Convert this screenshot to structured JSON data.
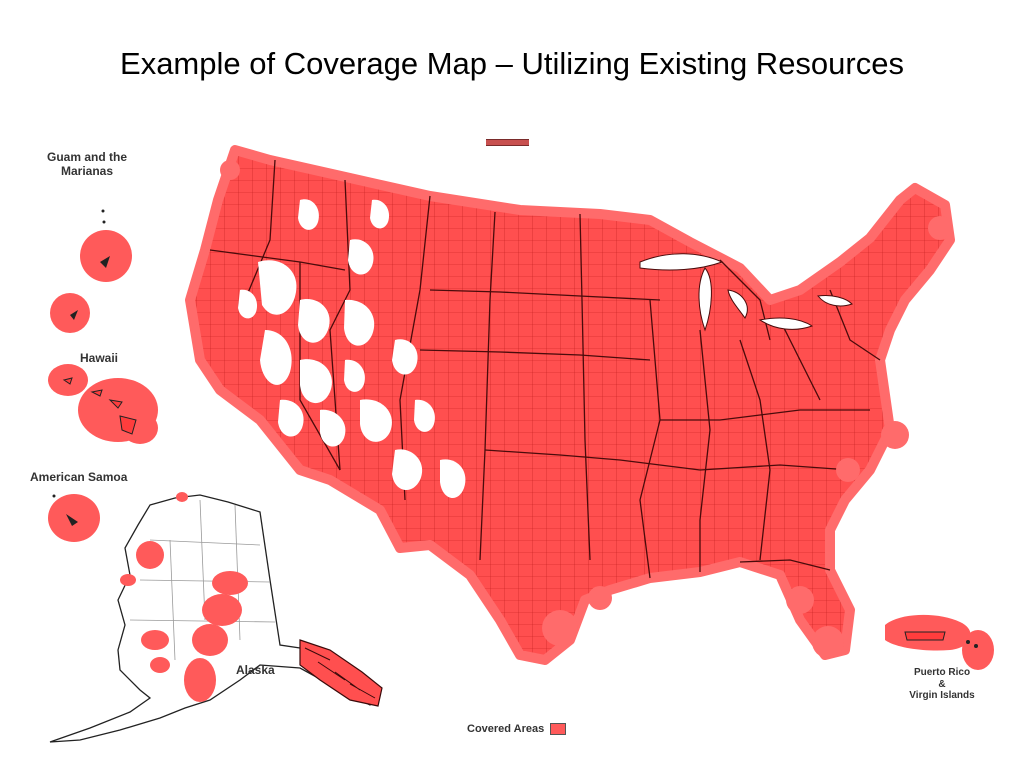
{
  "title": "Example of Coverage Map – Utilizing Existing Resources",
  "colors": {
    "coverage": "#ff4f4f",
    "coverage_soft": "#ff6b6b",
    "county_lines": "#b81818",
    "state_lines": "#4a0b0b",
    "uncovered": "#ffffff",
    "alaska_lines": "#9a9a9a"
  },
  "map": {
    "territories": {
      "guam": "Guam and the Marianas",
      "hawaii": "Hawaii",
      "american_samoa": "American Samoa",
      "alaska": "Alaska",
      "puerto_rico": "Puerto Rico",
      "amp": "&",
      "virgin_islands": "Virgin Islands"
    },
    "legend": {
      "label": "Covered Areas"
    }
  }
}
